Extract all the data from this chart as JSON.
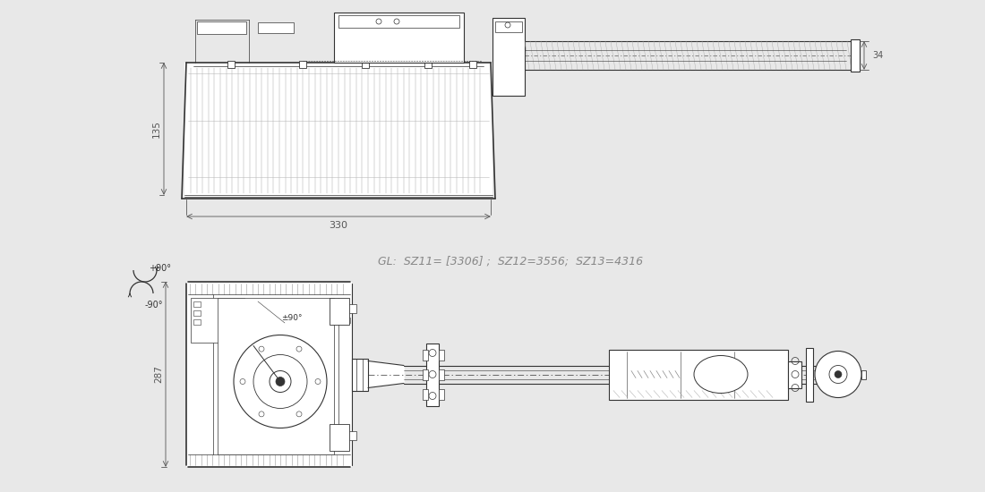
{
  "bg_color": "#e8e8e8",
  "drawing_color": "#333333",
  "dim_color": "#555555",
  "line_color": "#444444",
  "dim_135": "135",
  "dim_330": "330",
  "dim_34": "34",
  "dim_287": "287",
  "gl_text": "GL:  SZ11= [3306] ;  SZ12=3556;  SZ13=4316",
  "angle_plus90": "+90°",
  "angle_minus90": "-90°",
  "angle_pm90": "±90°"
}
